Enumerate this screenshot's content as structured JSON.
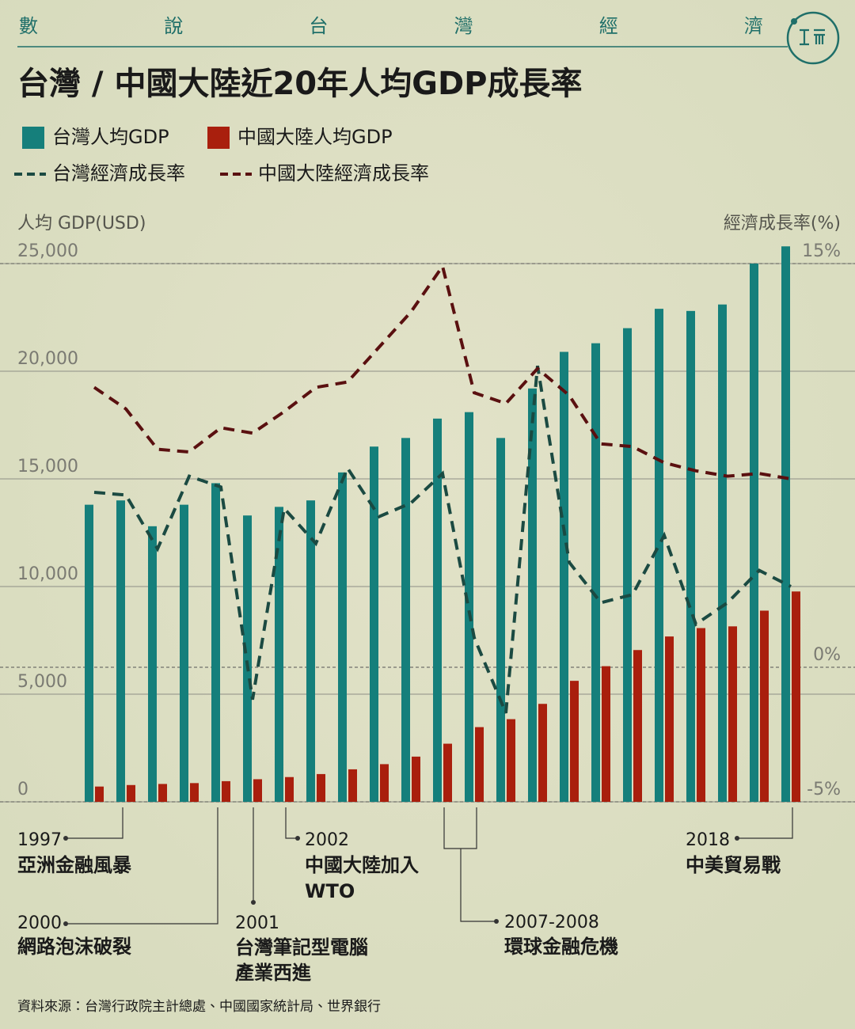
{
  "chart_data": {
    "type": "bar",
    "header": "數說台灣經濟",
    "title": "台灣 / 中國大陸近20年人均GDP成長率",
    "y_axis_title": "人均 GDP(USD)",
    "y2_axis_title": "經濟成長率(%)",
    "categories": [
      null,
      null,
      null,
      null,
      null,
      null,
      null,
      null,
      null,
      null,
      null,
      null,
      null,
      null,
      null,
      null,
      null,
      null,
      null,
      null,
      null,
      null,
      null
    ],
    "series": [
      {
        "name": "台灣人均GDP",
        "type": "bar",
        "color": "#157f7b",
        "values": [
          13800,
          14000,
          12800,
          13800,
          14800,
          13300,
          13700,
          14000,
          15300,
          16500,
          16900,
          17800,
          18100,
          16900,
          19200,
          20900,
          21300,
          22000,
          22900,
          22800,
          23100,
          25000,
          25800
        ]
      },
      {
        "name": "中國大陸人均GDP",
        "type": "bar",
        "color": "#a91f0d",
        "values": [
          710,
          780,
          830,
          870,
          960,
          1050,
          1150,
          1290,
          1510,
          1750,
          2100,
          2700,
          3470,
          3840,
          4550,
          5620,
          6300,
          7050,
          7680,
          8070,
          8150,
          8880,
          9770
        ]
      },
      {
        "name": "台灣經濟成長率",
        "type": "line",
        "axis": "y2",
        "color": "#1b4a42",
        "values": [
          6.5,
          6.4,
          4.4,
          7.1,
          6.7,
          -1.2,
          5.9,
          4.6,
          7.4,
          5.6,
          6.1,
          7.2,
          1.1,
          -1.7,
          11.2,
          3.9,
          2.4,
          2.7,
          4.9,
          1.6,
          2.4,
          3.6,
          3.0
        ]
      },
      {
        "name": "中國大陸經濟成長率",
        "type": "line",
        "axis": "y2",
        "color": "#5a1010",
        "values": [
          10.4,
          9.6,
          8.1,
          8.0,
          8.9,
          8.7,
          9.5,
          10.4,
          10.6,
          11.9,
          13.2,
          14.9,
          10.2,
          9.8,
          11.1,
          10.1,
          8.3,
          8.2,
          7.6,
          7.3,
          7.1,
          7.2,
          7.0
        ]
      }
    ],
    "ylim": [
      0,
      25000
    ],
    "yticks": [
      0,
      {
        "value": 5000,
        "label": "5,000"
      },
      {
        "value": 10000,
        "label": "10,000"
      },
      {
        "value": 15000,
        "label": "15,000"
      },
      {
        "value": 20000,
        "label": "20,000"
      },
      {
        "value": 25000,
        "label": "25,000"
      }
    ],
    "y2lim": [
      -5,
      15
    ],
    "y2ticks": [
      {
        "value": -5,
        "label": "-5%"
      },
      {
        "value": 0,
        "label": "0%"
      },
      {
        "value": 15,
        "label": "15%"
      }
    ],
    "grid": true,
    "annotations": [
      {
        "year": "1997",
        "lines": [
          "亞洲金融風暴"
        ]
      },
      {
        "year": "2000",
        "lines": [
          "網路泡沫破裂"
        ]
      },
      {
        "year": "2001",
        "lines": [
          "台灣筆記型電腦",
          "產業西進"
        ]
      },
      {
        "year": "2002",
        "lines": [
          "中國大陸加入",
          "WTO"
        ]
      },
      {
        "year": "2007-2008",
        "lines": [
          "環球金融危機"
        ]
      },
      {
        "year": "2018",
        "lines": [
          "中美貿易戰"
        ]
      }
    ],
    "source": "資料來源：台灣行政院主計總處、中國國家統計局、世界銀行"
  }
}
